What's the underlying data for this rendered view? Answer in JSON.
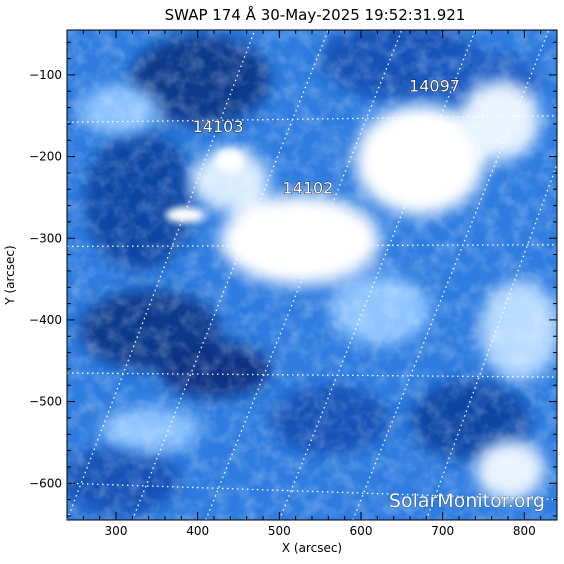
{
  "title": "SWAP 174 Å 30‐May‐2025 19:52:31.921",
  "xlabel": "X (arcsec)",
  "ylabel": "Y (arcsec)",
  "x_ticks": [
    {
      "value": 300,
      "label": "300"
    },
    {
      "value": 400,
      "label": "400"
    },
    {
      "value": 500,
      "label": "500"
    },
    {
      "value": 600,
      "label": "600"
    },
    {
      "value": 700,
      "label": "700"
    },
    {
      "value": 800,
      "label": "800"
    }
  ],
  "y_ticks": [
    {
      "value": -100,
      "label": "−100"
    },
    {
      "value": -200,
      "label": "−200"
    },
    {
      "value": -300,
      "label": "−300"
    },
    {
      "value": -400,
      "label": "−400"
    },
    {
      "value": -500,
      "label": "−500"
    },
    {
      "value": -600,
      "label": "−600"
    }
  ],
  "xlim": [
    240,
    840
  ],
  "ylim": [
    -645,
    -45
  ],
  "active_regions": [
    {
      "label": "14097",
      "x": 690,
      "y": -120
    },
    {
      "label": "14103",
      "x": 425,
      "y": -170
    },
    {
      "label": "14102",
      "x": 535,
      "y": -245
    }
  ],
  "watermark": "SolarMonitor.org",
  "colors": {
    "deep_blue": "#0a3a8c",
    "mid_blue": "#2f7de0",
    "light_blue": "#8ec4ff",
    "white": "#ffffff",
    "grid": "#ffffff"
  }
}
